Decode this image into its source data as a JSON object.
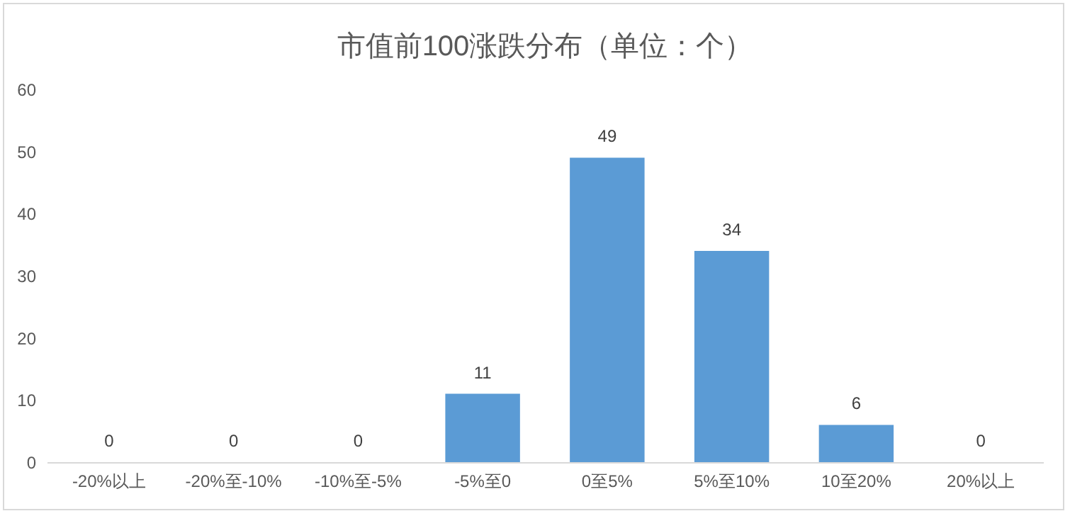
{
  "chart_data": {
    "type": "bar",
    "title": "市值前100涨跌分布（单位：个）",
    "categories": [
      "-20%以上",
      "-20%至-10%",
      "-10%至-5%",
      "-5%至0",
      "0至5%",
      "5%至10%",
      "10至20%",
      "20%以上"
    ],
    "values": [
      0,
      0,
      0,
      11,
      49,
      34,
      6,
      0
    ],
    "color": "#5b9bd5",
    "ylim": [
      0,
      60
    ],
    "yticks": [
      0,
      10,
      20,
      30,
      40,
      50,
      60
    ],
    "grid": false,
    "data_labels": true
  }
}
